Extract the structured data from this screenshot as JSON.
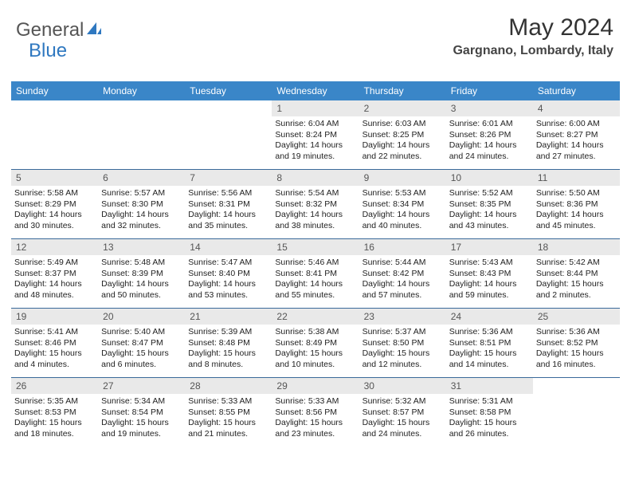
{
  "brand": {
    "part1": "General",
    "part2": "Blue"
  },
  "header": {
    "monthYear": "May 2024",
    "location": "Gargnano, Lombardy, Italy"
  },
  "colors": {
    "headerBar": "#3a86c8",
    "weekDivider": "#3a6a9a",
    "dayNumBg": "#e9e9e9",
    "brandBlue": "#2f78c0"
  },
  "weekdays": [
    "Sunday",
    "Monday",
    "Tuesday",
    "Wednesday",
    "Thursday",
    "Friday",
    "Saturday"
  ],
  "weeks": [
    [
      {
        "n": "",
        "lines": []
      },
      {
        "n": "",
        "lines": []
      },
      {
        "n": "",
        "lines": []
      },
      {
        "n": "1",
        "lines": [
          "Sunrise: 6:04 AM",
          "Sunset: 8:24 PM",
          "Daylight: 14 hours and 19 minutes."
        ]
      },
      {
        "n": "2",
        "lines": [
          "Sunrise: 6:03 AM",
          "Sunset: 8:25 PM",
          "Daylight: 14 hours and 22 minutes."
        ]
      },
      {
        "n": "3",
        "lines": [
          "Sunrise: 6:01 AM",
          "Sunset: 8:26 PM",
          "Daylight: 14 hours and 24 minutes."
        ]
      },
      {
        "n": "4",
        "lines": [
          "Sunrise: 6:00 AM",
          "Sunset: 8:27 PM",
          "Daylight: 14 hours and 27 minutes."
        ]
      }
    ],
    [
      {
        "n": "5",
        "lines": [
          "Sunrise: 5:58 AM",
          "Sunset: 8:29 PM",
          "Daylight: 14 hours and 30 minutes."
        ]
      },
      {
        "n": "6",
        "lines": [
          "Sunrise: 5:57 AM",
          "Sunset: 8:30 PM",
          "Daylight: 14 hours and 32 minutes."
        ]
      },
      {
        "n": "7",
        "lines": [
          "Sunrise: 5:56 AM",
          "Sunset: 8:31 PM",
          "Daylight: 14 hours and 35 minutes."
        ]
      },
      {
        "n": "8",
        "lines": [
          "Sunrise: 5:54 AM",
          "Sunset: 8:32 PM",
          "Daylight: 14 hours and 38 minutes."
        ]
      },
      {
        "n": "9",
        "lines": [
          "Sunrise: 5:53 AM",
          "Sunset: 8:34 PM",
          "Daylight: 14 hours and 40 minutes."
        ]
      },
      {
        "n": "10",
        "lines": [
          "Sunrise: 5:52 AM",
          "Sunset: 8:35 PM",
          "Daylight: 14 hours and 43 minutes."
        ]
      },
      {
        "n": "11",
        "lines": [
          "Sunrise: 5:50 AM",
          "Sunset: 8:36 PM",
          "Daylight: 14 hours and 45 minutes."
        ]
      }
    ],
    [
      {
        "n": "12",
        "lines": [
          "Sunrise: 5:49 AM",
          "Sunset: 8:37 PM",
          "Daylight: 14 hours and 48 minutes."
        ]
      },
      {
        "n": "13",
        "lines": [
          "Sunrise: 5:48 AM",
          "Sunset: 8:39 PM",
          "Daylight: 14 hours and 50 minutes."
        ]
      },
      {
        "n": "14",
        "lines": [
          "Sunrise: 5:47 AM",
          "Sunset: 8:40 PM",
          "Daylight: 14 hours and 53 minutes."
        ]
      },
      {
        "n": "15",
        "lines": [
          "Sunrise: 5:46 AM",
          "Sunset: 8:41 PM",
          "Daylight: 14 hours and 55 minutes."
        ]
      },
      {
        "n": "16",
        "lines": [
          "Sunrise: 5:44 AM",
          "Sunset: 8:42 PM",
          "Daylight: 14 hours and 57 minutes."
        ]
      },
      {
        "n": "17",
        "lines": [
          "Sunrise: 5:43 AM",
          "Sunset: 8:43 PM",
          "Daylight: 14 hours and 59 minutes."
        ]
      },
      {
        "n": "18",
        "lines": [
          "Sunrise: 5:42 AM",
          "Sunset: 8:44 PM",
          "Daylight: 15 hours and 2 minutes."
        ]
      }
    ],
    [
      {
        "n": "19",
        "lines": [
          "Sunrise: 5:41 AM",
          "Sunset: 8:46 PM",
          "Daylight: 15 hours and 4 minutes."
        ]
      },
      {
        "n": "20",
        "lines": [
          "Sunrise: 5:40 AM",
          "Sunset: 8:47 PM",
          "Daylight: 15 hours and 6 minutes."
        ]
      },
      {
        "n": "21",
        "lines": [
          "Sunrise: 5:39 AM",
          "Sunset: 8:48 PM",
          "Daylight: 15 hours and 8 minutes."
        ]
      },
      {
        "n": "22",
        "lines": [
          "Sunrise: 5:38 AM",
          "Sunset: 8:49 PM",
          "Daylight: 15 hours and 10 minutes."
        ]
      },
      {
        "n": "23",
        "lines": [
          "Sunrise: 5:37 AM",
          "Sunset: 8:50 PM",
          "Daylight: 15 hours and 12 minutes."
        ]
      },
      {
        "n": "24",
        "lines": [
          "Sunrise: 5:36 AM",
          "Sunset: 8:51 PM",
          "Daylight: 15 hours and 14 minutes."
        ]
      },
      {
        "n": "25",
        "lines": [
          "Sunrise: 5:36 AM",
          "Sunset: 8:52 PM",
          "Daylight: 15 hours and 16 minutes."
        ]
      }
    ],
    [
      {
        "n": "26",
        "lines": [
          "Sunrise: 5:35 AM",
          "Sunset: 8:53 PM",
          "Daylight: 15 hours and 18 minutes."
        ]
      },
      {
        "n": "27",
        "lines": [
          "Sunrise: 5:34 AM",
          "Sunset: 8:54 PM",
          "Daylight: 15 hours and 19 minutes."
        ]
      },
      {
        "n": "28",
        "lines": [
          "Sunrise: 5:33 AM",
          "Sunset: 8:55 PM",
          "Daylight: 15 hours and 21 minutes."
        ]
      },
      {
        "n": "29",
        "lines": [
          "Sunrise: 5:33 AM",
          "Sunset: 8:56 PM",
          "Daylight: 15 hours and 23 minutes."
        ]
      },
      {
        "n": "30",
        "lines": [
          "Sunrise: 5:32 AM",
          "Sunset: 8:57 PM",
          "Daylight: 15 hours and 24 minutes."
        ]
      },
      {
        "n": "31",
        "lines": [
          "Sunrise: 5:31 AM",
          "Sunset: 8:58 PM",
          "Daylight: 15 hours and 26 minutes."
        ]
      },
      {
        "n": "",
        "lines": []
      }
    ]
  ]
}
